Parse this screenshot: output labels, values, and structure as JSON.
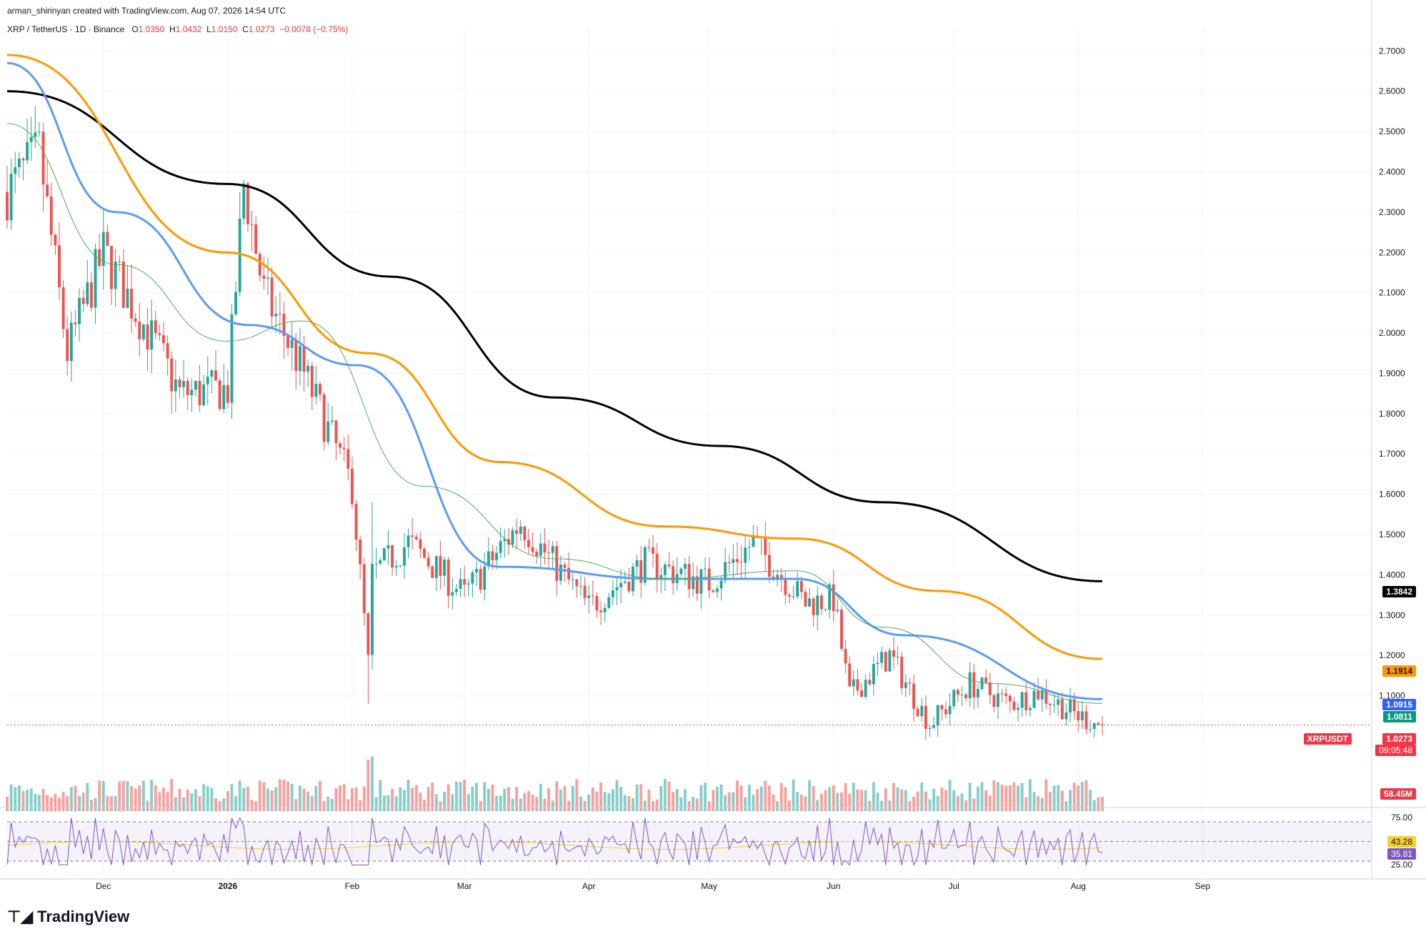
{
  "header": {
    "credit": "arman_shirinyan created with TradingView.com, Aug 07, 2026 14:54 UTC"
  },
  "symbol": {
    "title": "XRP / TetherUS · 1D · Binance",
    "open_label": "O",
    "open": "1.0350",
    "high_label": "H",
    "high": "1.0432",
    "low_label": "L",
    "low": "1.0150",
    "close_label": "C",
    "close": "1.0273",
    "change": "−0.0078 (−0.75%)"
  },
  "price_axis": {
    "ticks": [
      "2.7000",
      "2.6000",
      "2.5000",
      "2.4000",
      "2.3000",
      "2.2000",
      "2.1000",
      "2.0000",
      "1.9000",
      "1.8000",
      "1.7000",
      "1.6000",
      "1.5000",
      "1.4000",
      "1.3000",
      "1.2000",
      "1.1000"
    ]
  },
  "time_axis": {
    "labels": [
      "Dec",
      "2026",
      "Feb",
      "Mar",
      "Apr",
      "May",
      "Jun",
      "Jul",
      "Aug",
      "Sep"
    ]
  },
  "tags": {
    "ma200": "1.3842",
    "ma100": "1.1914",
    "ma50": "1.0915",
    "ma20": "1.0811",
    "ticker": "XRPUSDT",
    "price": "1.0273",
    "countdown": "09:05:48",
    "volume": "58.45M",
    "rsi_upper": "75.00",
    "rsi_ma": "43.28",
    "rsi": "35.81",
    "rsi_lower": "25.00"
  },
  "colors": {
    "up": "#26a69a",
    "down": "#ef5350",
    "ma200": "#000000",
    "ma100": "#ff9800",
    "ma50": "#5b9cf6",
    "ma20": "#4caf50",
    "rsi": "#7e57c2",
    "rsi_ma": "#f5d130"
  },
  "logo": {
    "text": "TradingView"
  },
  "chart_data": {
    "type": "line",
    "interval": "1D",
    "ylim": [
      1.0,
      2.72
    ],
    "xlim": [
      "2025-11-07",
      "2026-09-20"
    ],
    "key_points": [
      {
        "date": "2025-11-07",
        "close": 2.35
      },
      {
        "date": "2025-11-15",
        "close": 2.45
      },
      {
        "date": "2025-11-22",
        "close": 1.95
      },
      {
        "date": "2025-12-01",
        "close": 2.2
      },
      {
        "date": "2025-12-15",
        "close": 1.95
      },
      {
        "date": "2025-12-20",
        "close": 1.85
      },
      {
        "date": "2026-01-01",
        "close": 1.86
      },
      {
        "date": "2026-01-05",
        "close": 2.37
      },
      {
        "date": "2026-01-10",
        "close": 2.1
      },
      {
        "date": "2026-01-20",
        "close": 1.9
      },
      {
        "date": "2026-02-01",
        "close": 1.62
      },
      {
        "date": "2026-02-05",
        "close": 1.18
      },
      {
        "date": "2026-02-06",
        "close": 1.4
      },
      {
        "date": "2026-02-15",
        "close": 1.48
      },
      {
        "date": "2026-03-01",
        "close": 1.35
      },
      {
        "date": "2026-03-15",
        "close": 1.53
      },
      {
        "date": "2026-04-01",
        "close": 1.32
      },
      {
        "date": "2026-04-15",
        "close": 1.43
      },
      {
        "date": "2026-05-01",
        "close": 1.38
      },
      {
        "date": "2026-05-12",
        "close": 1.48
      },
      {
        "date": "2026-05-25",
        "close": 1.33
      },
      {
        "date": "2026-06-01",
        "close": 1.34
      },
      {
        "date": "2026-06-05",
        "close": 1.1
      },
      {
        "date": "2026-06-15",
        "close": 1.2
      },
      {
        "date": "2026-06-25",
        "close": 1.03
      },
      {
        "date": "2026-07-05",
        "close": 1.13
      },
      {
        "date": "2026-07-15",
        "close": 1.08
      },
      {
        "date": "2026-07-22",
        "close": 1.11
      },
      {
        "date": "2026-08-01",
        "close": 1.05
      },
      {
        "date": "2026-08-07",
        "close": 1.0273
      }
    ],
    "moving_averages": [
      {
        "color": "#000000",
        "start": 2.6,
        "end": 1.3842
      },
      {
        "color": "#ff9800",
        "start": 2.69,
        "end": 1.1914
      },
      {
        "color": "#5b9cf6",
        "start": 2.67,
        "end": 1.0915
      },
      {
        "color": "#4caf50",
        "start": 2.52,
        "end": 1.0811
      }
    ],
    "volume_last": "58.45M",
    "rsi_last": 35.81,
    "rsi_ma_last": 43.28,
    "rsi_bounds": [
      25,
      75
    ]
  }
}
